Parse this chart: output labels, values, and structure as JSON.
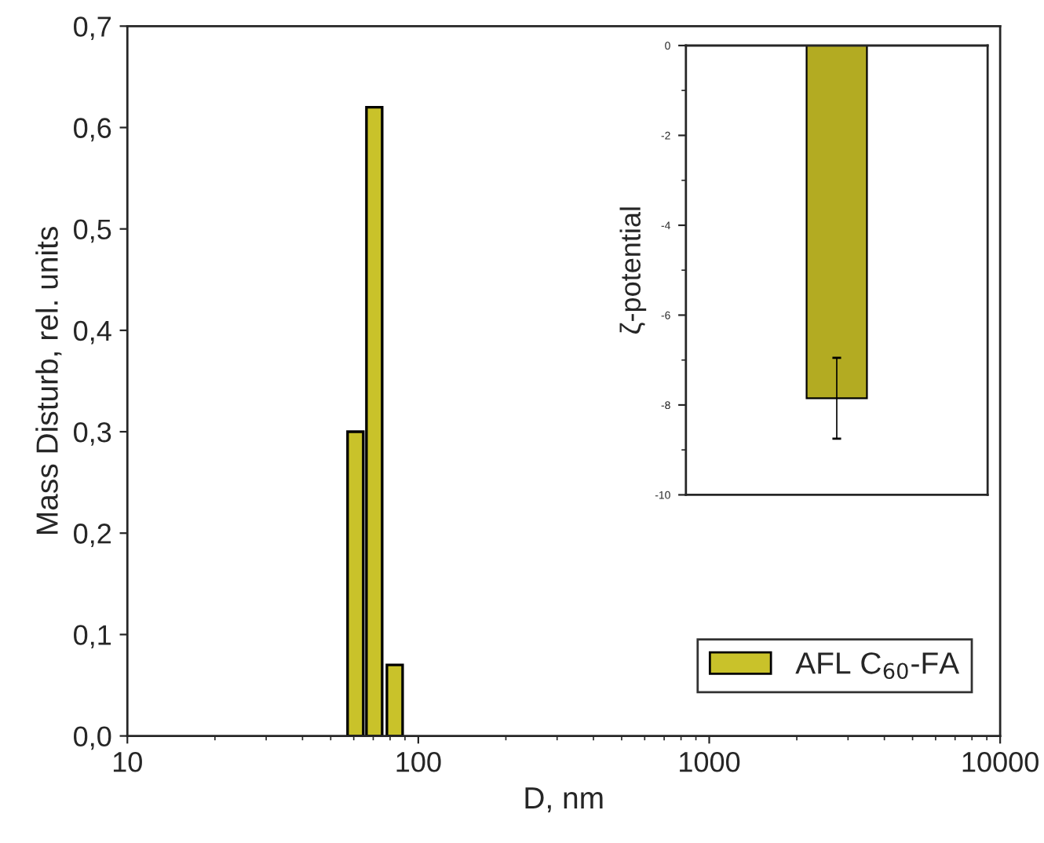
{
  "chart_data": [
    {
      "type": "bar",
      "xlabel": "D, nm",
      "ylabel": "Mass Disturb, rel. units",
      "log": "x",
      "x": [
        60.8,
        70.6,
        83
      ],
      "series": [
        {
          "name": "AFL C$_{60}$-FA",
          "color": "#c9c22a",
          "values": [
            0.3,
            0.62,
            0.07
          ]
        }
      ],
      "xlim": [
        10,
        10000
      ],
      "xticks": [
        10,
        100,
        1000,
        10000
      ],
      "ylim": [
        0,
        0.7
      ],
      "yticks": [
        {
          "value": 0,
          "label": "0,0"
        },
        {
          "value": 0.1,
          "label": "0,1"
        },
        {
          "value": 0.2,
          "label": "0,2"
        },
        {
          "value": 0.3,
          "label": "0,3"
        },
        {
          "value": 0.4,
          "label": "0,4"
        },
        {
          "value": 0.5,
          "label": "0,5"
        },
        {
          "value": 0.6,
          "label": "0,6"
        },
        {
          "value": 0.7,
          "label": "0,7"
        }
      ],
      "legend": "bottom right",
      "grid": false
    },
    {
      "type": "bar",
      "ylabel": "ζ-potential",
      "categories": [
        null
      ],
      "series": [
        {
          "color": "#b3ab22",
          "values": [
            -7.85
          ],
          "errors": [
            0.9
          ]
        }
      ],
      "ylim": [
        -10,
        0
      ],
      "yticks": [
        0,
        -2,
        -4,
        -6,
        -8,
        -10
      ],
      "grid": false
    }
  ]
}
